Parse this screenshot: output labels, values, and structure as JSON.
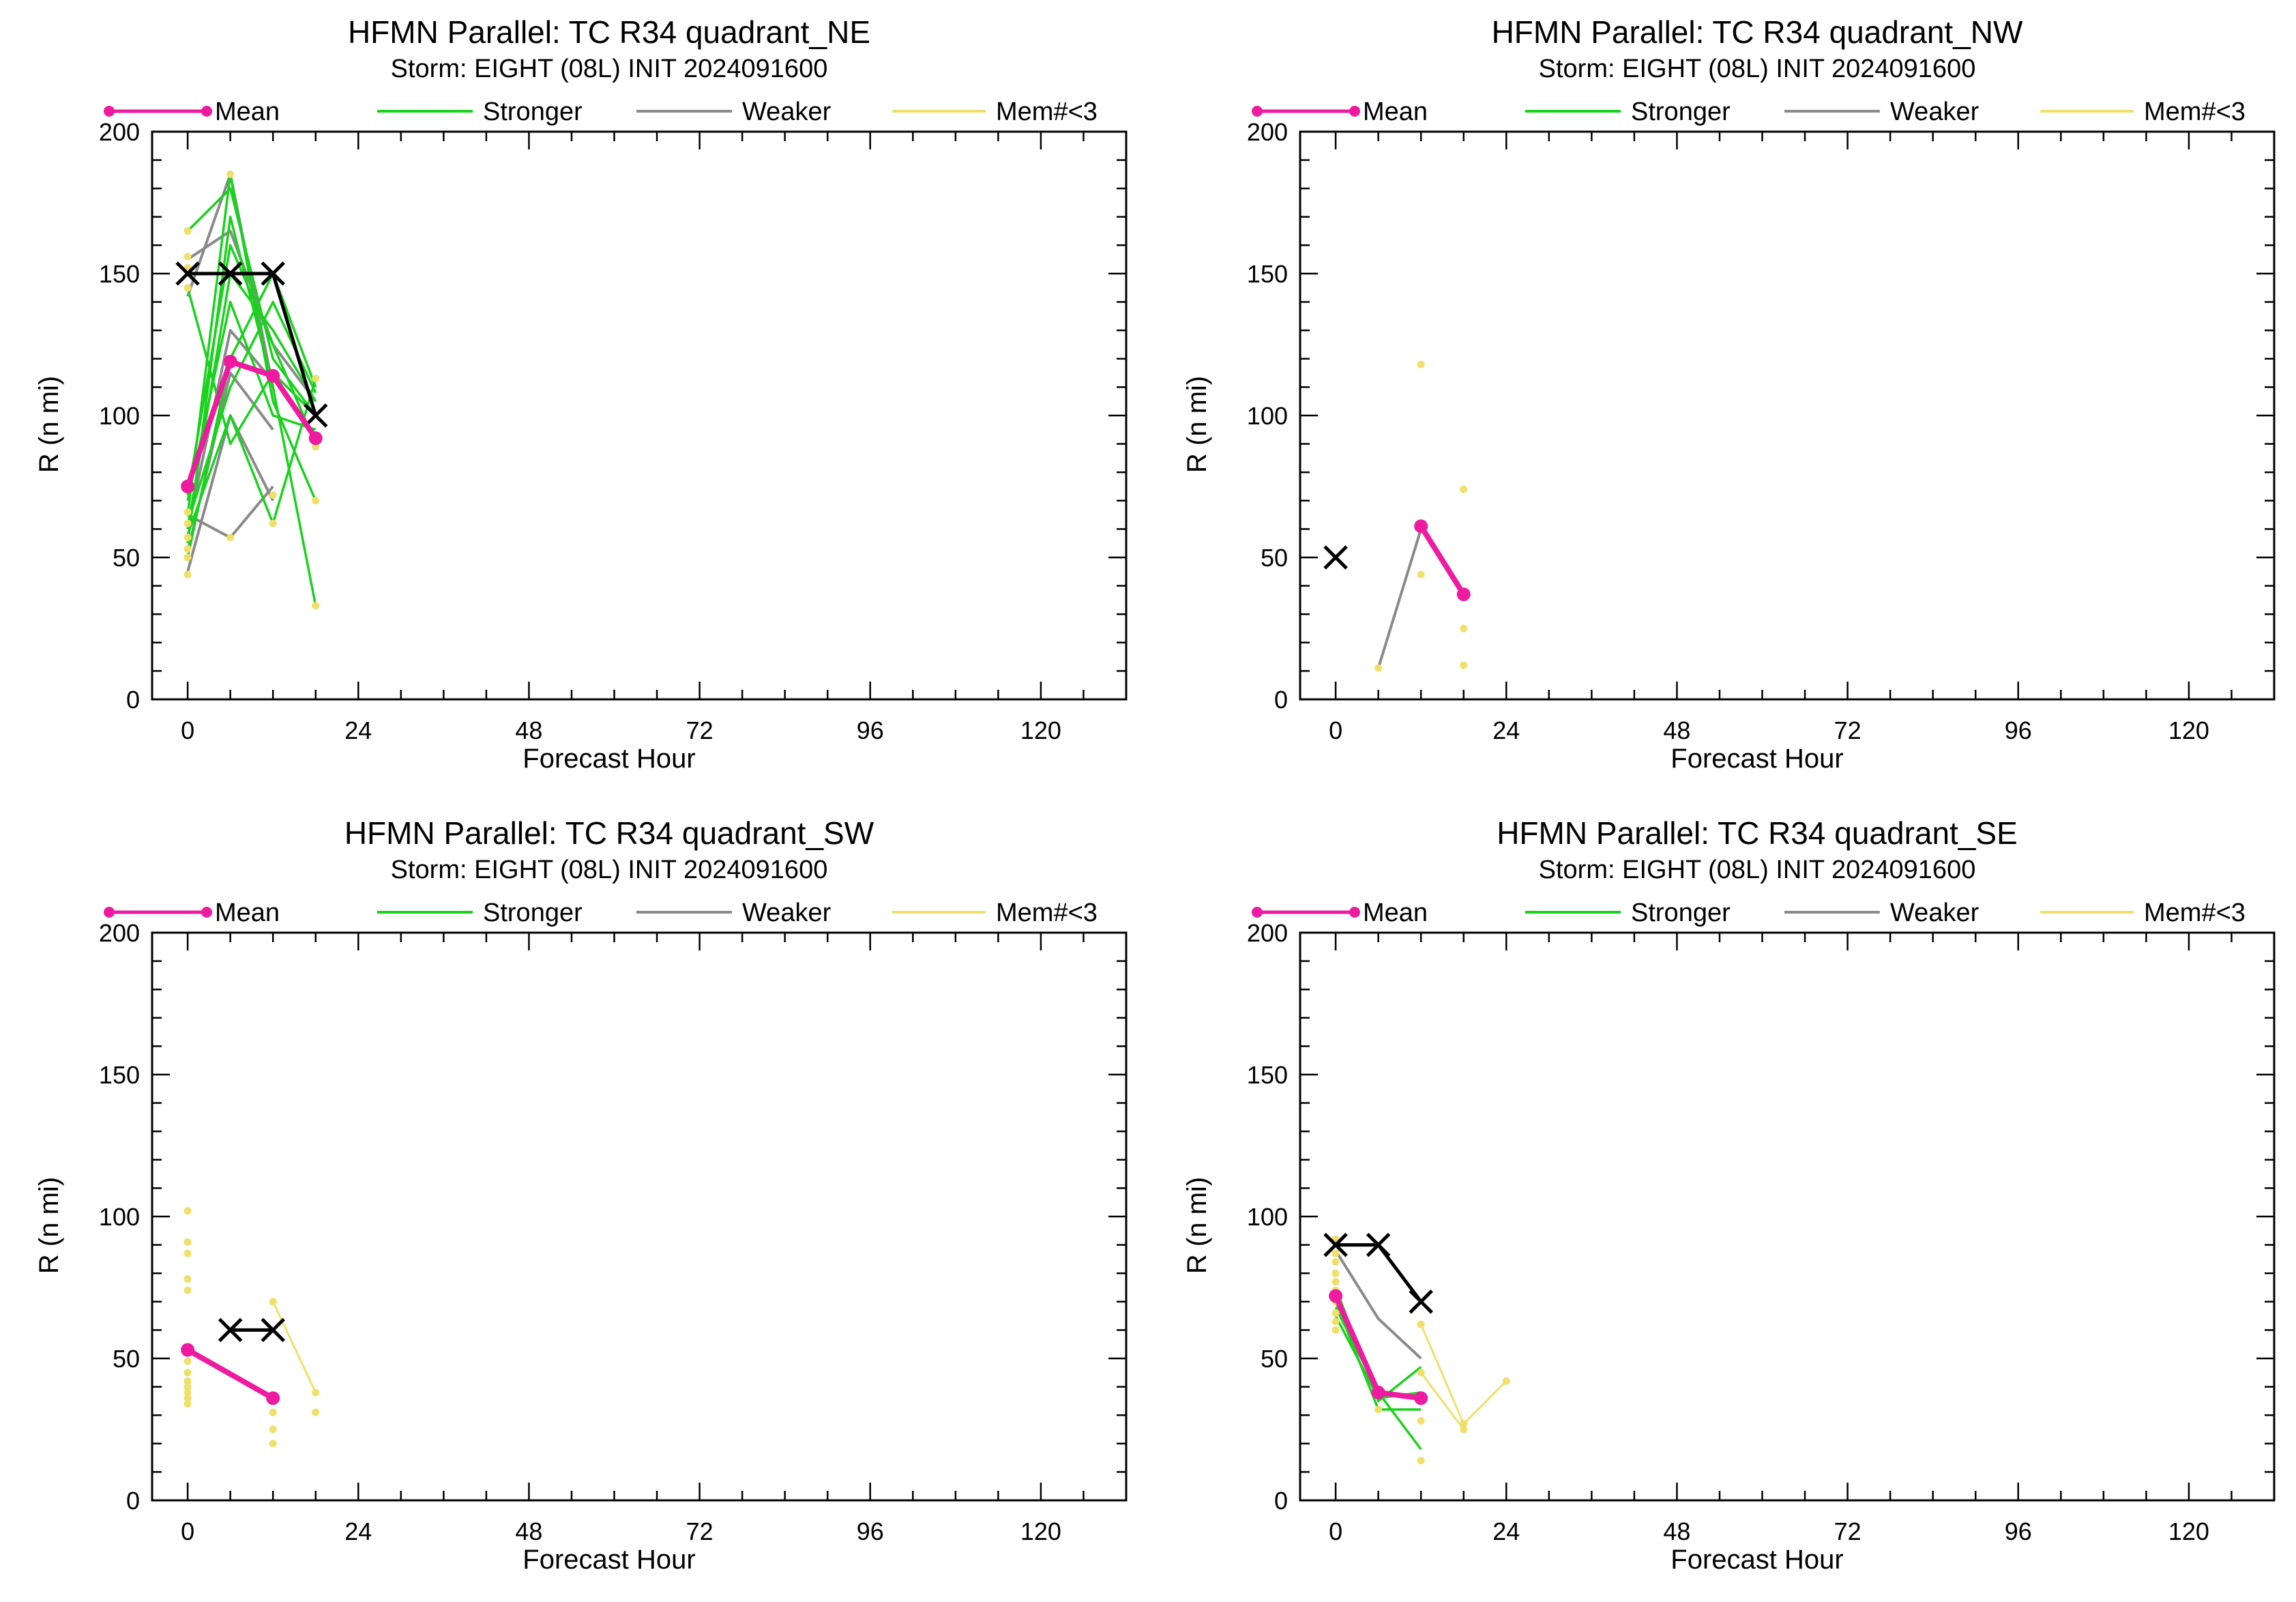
{
  "chart_data": [
    {
      "type": "line",
      "title": "HFMN Parallel: TC  R34 quadrant_NE",
      "subtitle": "Storm: EIGHT (08L) INIT 2024091600",
      "xlabel": "Forecast Hour",
      "ylabel": "R (n mi)",
      "xlim": [
        -5,
        132
      ],
      "ylim": [
        0,
        200
      ],
      "xticks": [
        0,
        24,
        48,
        72,
        96,
        120
      ],
      "yticks": [
        0,
        50,
        100,
        150,
        200
      ],
      "legend": [
        "Mean",
        "Stronger",
        "Weaker",
        "Mem#<3"
      ],
      "best_track": {
        "x": [
          0,
          6,
          12,
          18
        ],
        "y": [
          150,
          150,
          150,
          100
        ]
      },
      "mean": {
        "x": [
          0,
          6,
          12,
          18
        ],
        "y": [
          75,
          119,
          114,
          92
        ]
      },
      "stronger": [
        {
          "x": [
            0,
            6,
            12,
            18
          ],
          "y": [
            165,
            180,
            120,
            100
          ]
        },
        {
          "x": [
            0,
            6,
            12,
            18
          ],
          "y": [
            60,
            150,
            130,
            105
          ]
        },
        {
          "x": [
            0,
            6,
            12,
            18
          ],
          "y": [
            55,
            170,
            110,
            33
          ]
        },
        {
          "x": [
            0,
            6,
            12,
            18
          ],
          "y": [
            70,
            140,
            100,
            95
          ]
        },
        {
          "x": [
            0,
            6,
            12,
            18
          ],
          "y": [
            50,
            120,
            150,
            110
          ]
        },
        {
          "x": [
            0,
            6,
            12,
            18
          ],
          "y": [
            65,
            185,
            105,
            70
          ]
        },
        {
          "x": [
            0,
            6,
            12,
            18
          ],
          "y": [
            58,
            100,
            62,
            113
          ]
        },
        {
          "x": [
            0,
            6,
            12,
            18
          ],
          "y": [
            72,
            160,
            125,
            90
          ]
        },
        {
          "x": [
            0,
            6,
            12,
            18
          ],
          "y": [
            62,
            110,
            140,
            108
          ]
        },
        {
          "x": [
            0,
            6,
            12,
            18
          ],
          "y": [
            145,
            90,
            115,
            100
          ]
        }
      ],
      "weaker": [
        {
          "x": [
            0,
            6,
            12,
            18
          ],
          "y": [
            155,
            165,
            125,
            105
          ]
        },
        {
          "x": [
            0,
            6,
            12
          ],
          "y": [
            45,
            100,
            70
          ]
        },
        {
          "x": [
            0,
            6,
            12
          ],
          "y": [
            60,
            130,
            112
          ]
        },
        {
          "x": [
            0,
            6,
            12
          ],
          "y": [
            142,
            185,
            110
          ]
        },
        {
          "x": [
            0,
            6,
            12
          ],
          "y": [
            65,
            57,
            75
          ]
        },
        {
          "x": [
            0,
            6,
            12
          ],
          "y": [
            52,
            115,
            95
          ]
        }
      ],
      "mem_lt3_points": [
        {
          "x": 0,
          "y": 44
        },
        {
          "x": 0,
          "y": 50
        },
        {
          "x": 0,
          "y": 53
        },
        {
          "x": 0,
          "y": 57
        },
        {
          "x": 0,
          "y": 62
        },
        {
          "x": 0,
          "y": 66
        },
        {
          "x": 0,
          "y": 145
        },
        {
          "x": 0,
          "y": 152
        },
        {
          "x": 0,
          "y": 156
        },
        {
          "x": 0,
          "y": 165
        },
        {
          "x": 6,
          "y": 57
        },
        {
          "x": 6,
          "y": 185
        },
        {
          "x": 12,
          "y": 62
        },
        {
          "x": 12,
          "y": 72
        },
        {
          "x": 18,
          "y": 33
        },
        {
          "x": 18,
          "y": 70
        },
        {
          "x": 18,
          "y": 89
        },
        {
          "x": 18,
          "y": 113
        }
      ]
    },
    {
      "type": "line",
      "title": "HFMN Parallel: TC  R34 quadrant_NW",
      "subtitle": "Storm: EIGHT (08L) INIT 2024091600",
      "xlabel": "Forecast Hour",
      "ylabel": "R (n mi)",
      "xlim": [
        -5,
        132
      ],
      "ylim": [
        0,
        200
      ],
      "xticks": [
        0,
        24,
        48,
        72,
        96,
        120
      ],
      "yticks": [
        0,
        50,
        100,
        150,
        200
      ],
      "legend": [
        "Mean",
        "Stronger",
        "Weaker",
        "Mem#<3"
      ],
      "best_track": {
        "x": [
          0
        ],
        "y": [
          50
        ]
      },
      "mean": {
        "x": [
          12,
          18
        ],
        "y": [
          61,
          37
        ]
      },
      "stronger": [],
      "weaker": [
        {
          "x": [
            6,
            12
          ],
          "y": [
            11,
            60
          ]
        }
      ],
      "mem_lt3_points": [
        {
          "x": 6,
          "y": 11
        },
        {
          "x": 12,
          "y": 118
        },
        {
          "x": 12,
          "y": 44
        },
        {
          "x": 18,
          "y": 74
        },
        {
          "x": 18,
          "y": 25
        },
        {
          "x": 18,
          "y": 12
        }
      ]
    },
    {
      "type": "line",
      "title": "HFMN Parallel: TC  R34 quadrant_SW",
      "subtitle": "Storm: EIGHT (08L) INIT 2024091600",
      "xlabel": "Forecast Hour",
      "ylabel": "R (n mi)",
      "xlim": [
        -5,
        132
      ],
      "ylim": [
        0,
        200
      ],
      "xticks": [
        0,
        24,
        48,
        72,
        96,
        120
      ],
      "yticks": [
        0,
        50,
        100,
        150,
        200
      ],
      "legend": [
        "Mean",
        "Stronger",
        "Weaker",
        "Mem#<3"
      ],
      "best_track": {
        "x": [
          6,
          12
        ],
        "y": [
          60,
          60
        ]
      },
      "mean": {
        "x": [
          0,
          12
        ],
        "y": [
          53,
          36
        ]
      },
      "stronger": [],
      "weaker": [],
      "mem_lt3_lines": [
        {
          "x": [
            12,
            18
          ],
          "y": [
            70,
            38
          ]
        }
      ],
      "mem_lt3_points": [
        {
          "x": 0,
          "y": 102
        },
        {
          "x": 0,
          "y": 91
        },
        {
          "x": 0,
          "y": 87
        },
        {
          "x": 0,
          "y": 78
        },
        {
          "x": 0,
          "y": 74
        },
        {
          "x": 0,
          "y": 49
        },
        {
          "x": 0,
          "y": 45
        },
        {
          "x": 0,
          "y": 42
        },
        {
          "x": 0,
          "y": 40
        },
        {
          "x": 0,
          "y": 38
        },
        {
          "x": 0,
          "y": 36
        },
        {
          "x": 0,
          "y": 34
        },
        {
          "x": 12,
          "y": 70
        },
        {
          "x": 12,
          "y": 31
        },
        {
          "x": 12,
          "y": 25
        },
        {
          "x": 12,
          "y": 20
        },
        {
          "x": 18,
          "y": 38
        },
        {
          "x": 18,
          "y": 31
        }
      ]
    },
    {
      "type": "line",
      "title": "HFMN Parallel: TC  R34 quadrant_SE",
      "subtitle": "Storm: EIGHT (08L) INIT 2024091600",
      "xlabel": "Forecast Hour",
      "ylabel": "R (n mi)",
      "xlim": [
        -5,
        132
      ],
      "ylim": [
        0,
        200
      ],
      "xticks": [
        0,
        24,
        48,
        72,
        96,
        120
      ],
      "yticks": [
        0,
        50,
        100,
        150,
        200
      ],
      "legend": [
        "Mean",
        "Stronger",
        "Weaker",
        "Mem#<3"
      ],
      "best_track": {
        "x": [
          0,
          6,
          12
        ],
        "y": [
          90,
          90,
          70
        ]
      },
      "mean": {
        "x": [
          0,
          6,
          12
        ],
        "y": [
          72,
          38,
          36
        ]
      },
      "stronger": [
        {
          "x": [
            0,
            6,
            12
          ],
          "y": [
            75,
            35,
            47
          ]
        },
        {
          "x": [
            0,
            6,
            12
          ],
          "y": [
            68,
            38,
            18
          ]
        },
        {
          "x": [
            0,
            6,
            12
          ],
          "y": [
            70,
            32,
            32
          ]
        },
        {
          "x": [
            0,
            6,
            12
          ],
          "y": [
            65,
            36,
            38
          ]
        }
      ],
      "weaker": [
        {
          "x": [
            0,
            6,
            12
          ],
          "y": [
            88,
            64,
            50
          ]
        }
      ],
      "mem_lt3_lines": [
        {
          "x": [
            12,
            18,
            24
          ],
          "y": [
            62,
            27,
            42
          ]
        },
        {
          "x": [
            12,
            18
          ],
          "y": [
            45,
            25
          ]
        }
      ],
      "mem_lt3_points": [
        {
          "x": 0,
          "y": 60
        },
        {
          "x": 0,
          "y": 63
        },
        {
          "x": 0,
          "y": 66
        },
        {
          "x": 0,
          "y": 70
        },
        {
          "x": 0,
          "y": 74
        },
        {
          "x": 0,
          "y": 77
        },
        {
          "x": 0,
          "y": 80
        },
        {
          "x": 0,
          "y": 84
        },
        {
          "x": 0,
          "y": 87
        },
        {
          "x": 0,
          "y": 92
        },
        {
          "x": 6,
          "y": 32
        },
        {
          "x": 12,
          "y": 62
        },
        {
          "x": 12,
          "y": 45
        },
        {
          "x": 12,
          "y": 28
        },
        {
          "x": 12,
          "y": 14
        },
        {
          "x": 18,
          "y": 27
        },
        {
          "x": 18,
          "y": 25
        },
        {
          "x": 24,
          "y": 42
        }
      ]
    }
  ],
  "colors": {
    "mean": "#ee1ba1",
    "stronger": "#19d21d",
    "weaker": "#8a8a8a",
    "mem_lt3": "#efe06a",
    "best_track": "#000000"
  }
}
